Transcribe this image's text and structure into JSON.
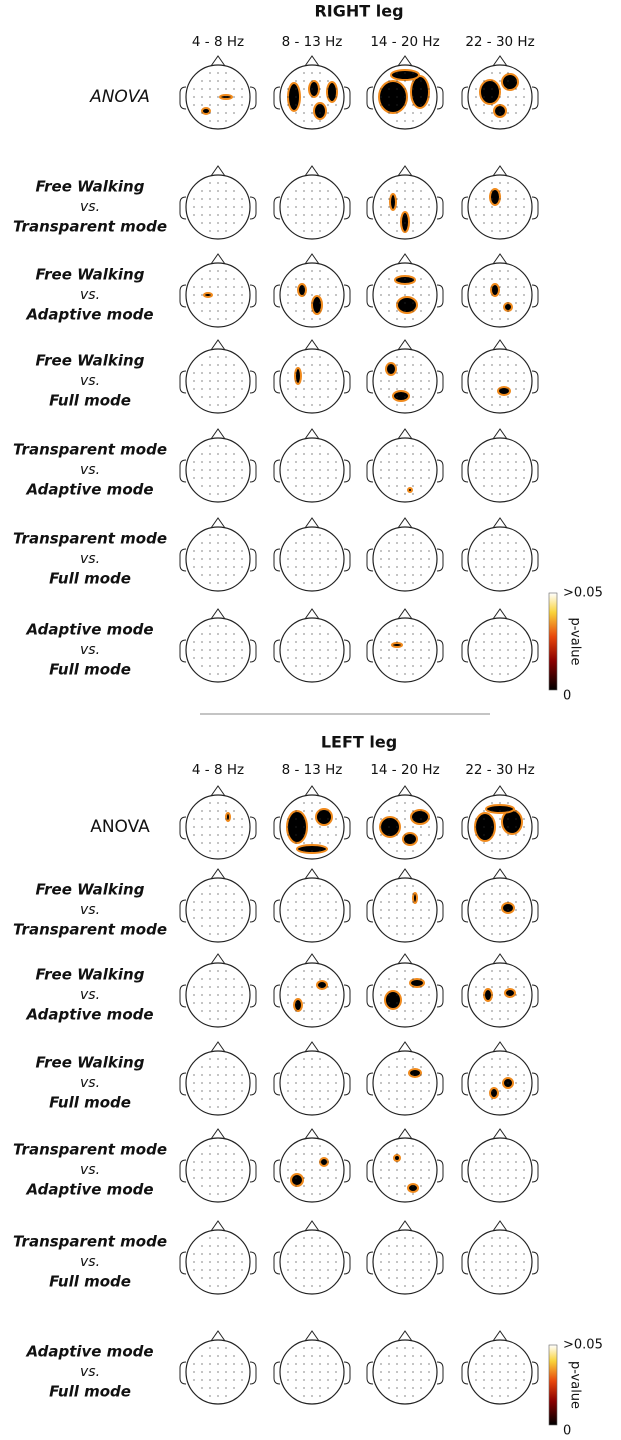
{
  "panels": [
    {
      "title": "RIGHT leg",
      "columns": [
        "4 - 8 Hz",
        "8 - 13 Hz",
        "14 - 20 Hz",
        "22 - 30 Hz"
      ],
      "anova": "ANOVA",
      "rows": [
        {
          "a": "Free Walking",
          "vs": "vs.",
          "b": "Transparent mode"
        },
        {
          "a": "Free Walking",
          "vs": "vs.",
          "b": "Adaptive mode"
        },
        {
          "a": "Free Walking",
          "vs": "vs.",
          "b": "Full mode"
        },
        {
          "a": "Transparent mode",
          "vs": "vs.",
          "b": "Adaptive mode"
        },
        {
          "a": "Transparent mode",
          "vs": "vs.",
          "b": "Full mode"
        },
        {
          "a": "Adaptive mode",
          "vs": "vs.",
          "b": "Full mode"
        }
      ],
      "colorbar": {
        "max_label": ">0.05",
        "min_label": "0",
        "label": "p-value"
      }
    },
    {
      "title": "LEFT leg",
      "columns": [
        "4 - 8 Hz",
        "8 - 13 Hz",
        "14 - 20 Hz",
        "22 - 30 Hz"
      ],
      "anova": "ANOVA",
      "rows": [
        {
          "a": "Free Walking",
          "vs": "vs.",
          "b": "Transparent mode"
        },
        {
          "a": "Free Walking",
          "vs": "vs.",
          "b": "Adaptive mode"
        },
        {
          "a": "Free Walking",
          "vs": "vs.",
          "b": "Full mode"
        },
        {
          "a": "Transparent mode",
          "vs": "vs.",
          "b": "Adaptive mode"
        },
        {
          "a": "Transparent mode",
          "vs": "vs.",
          "b": "Full mode"
        },
        {
          "a": "Adaptive mode",
          "vs": "vs.",
          "b": "Full mode"
        }
      ],
      "colorbar": {
        "max_label": ">0.05",
        "min_label": "0",
        "label": "p-value"
      }
    }
  ]
}
